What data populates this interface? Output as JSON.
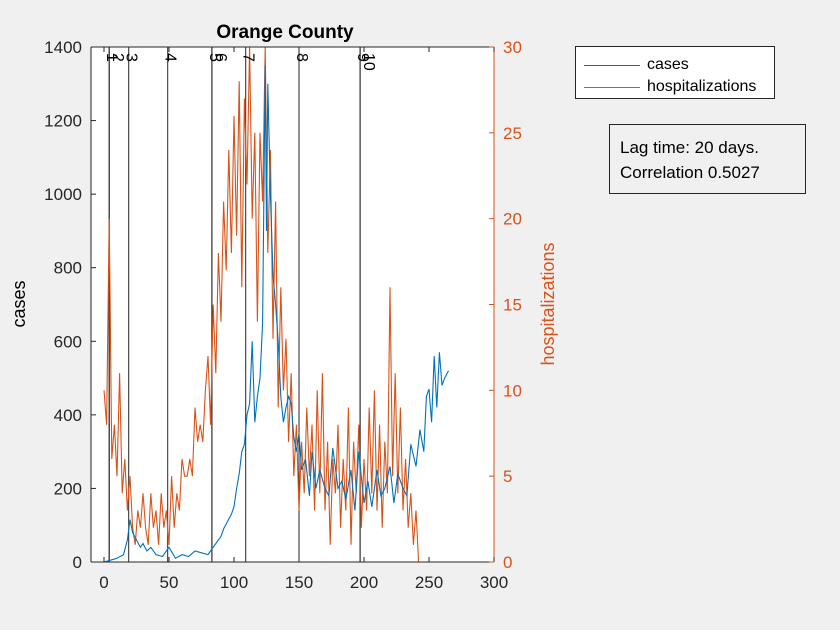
{
  "chart_data": {
    "type": "line",
    "title": "Orange County",
    "xlabel": "",
    "ylabel": "cases",
    "y2label": "hospitalizations",
    "xlim": [
      -10,
      300
    ],
    "ylim": [
      0,
      1400
    ],
    "y2lim": [
      0,
      30
    ],
    "xticks": [
      0,
      50,
      100,
      150,
      200,
      250,
      300
    ],
    "yticks": [
      0,
      200,
      400,
      600,
      800,
      1000,
      1200,
      1400
    ],
    "y2ticks": [
      0,
      5,
      10,
      15,
      20,
      25,
      30
    ],
    "grid": false,
    "legend_position": "outside-top-right",
    "colors": {
      "cases": "#0072bd",
      "hospitalizations": "#d95319",
      "axis": "#262626",
      "right_axis": "#d95319"
    },
    "vlines": [
      {
        "x": 4,
        "label": "1"
      },
      {
        "x": 4,
        "label": "2"
      },
      {
        "x": 19,
        "label": "3"
      },
      {
        "x": 49,
        "label": "4"
      },
      {
        "x": 83,
        "label": "5"
      },
      {
        "x": 83,
        "label": "6"
      },
      {
        "x": 109,
        "label": "7"
      },
      {
        "x": 150,
        "label": "8"
      },
      {
        "x": 197,
        "label": "9"
      },
      {
        "x": 197,
        "label": "10"
      }
    ],
    "series": [
      {
        "name": "cases",
        "axis": "left",
        "x": [
          0,
          5,
          10,
          15,
          18,
          20,
          22,
          25,
          28,
          30,
          33,
          36,
          40,
          45,
          50,
          55,
          60,
          65,
          70,
          75,
          80,
          83,
          86,
          88,
          90,
          92,
          95,
          98,
          100,
          102,
          104,
          106,
          108,
          110,
          112,
          114,
          116,
          118,
          120,
          122,
          124,
          125,
          126,
          128,
          130,
          132,
          134,
          136,
          138,
          140,
          142,
          144,
          146,
          148,
          150,
          152,
          155,
          158,
          160,
          163,
          166,
          170,
          173,
          176,
          180,
          183,
          186,
          190,
          193,
          196,
          200,
          203,
          206,
          210,
          213,
          216,
          220,
          223,
          226,
          230,
          233,
          236,
          240,
          243,
          246,
          248,
          250,
          252,
          254,
          256,
          258,
          260,
          262,
          265
        ],
        "y": [
          0,
          5,
          10,
          20,
          60,
          115,
          80,
          60,
          40,
          50,
          30,
          40,
          20,
          15,
          40,
          10,
          20,
          15,
          30,
          25,
          20,
          35,
          50,
          60,
          70,
          90,
          110,
          130,
          150,
          200,
          240,
          300,
          320,
          400,
          430,
          600,
          380,
          450,
          500,
          650,
          1350,
          900,
          1300,
          1000,
          780,
          700,
          600,
          450,
          380,
          420,
          450,
          430,
          340,
          300,
          350,
          250,
          280,
          180,
          300,
          200,
          250,
          200,
          180,
          310,
          200,
          220,
          170,
          250,
          140,
          300,
          160,
          220,
          150,
          250,
          180,
          200,
          260,
          160,
          240,
          200,
          180,
          320,
          260,
          360,
          300,
          450,
          470,
          380,
          560,
          420,
          570,
          480,
          500,
          520
        ]
      },
      {
        "name": "hospitalizations",
        "axis": "right",
        "x": [
          0,
          2,
          4,
          6,
          8,
          10,
          12,
          14,
          16,
          18,
          20,
          22,
          24,
          26,
          28,
          30,
          32,
          34,
          36,
          38,
          40,
          42,
          44,
          46,
          48,
          50,
          52,
          54,
          56,
          58,
          60,
          62,
          64,
          66,
          68,
          70,
          72,
          74,
          76,
          78,
          80,
          82,
          84,
          86,
          88,
          90,
          92,
          94,
          96,
          98,
          100,
          102,
          104,
          106,
          108,
          110,
          112,
          114,
          116,
          118,
          120,
          122,
          124,
          126,
          128,
          130,
          132,
          134,
          136,
          138,
          140,
          142,
          144,
          146,
          148,
          150,
          152,
          154,
          156,
          158,
          160,
          162,
          164,
          166,
          168,
          170,
          172,
          174,
          176,
          178,
          180,
          182,
          184,
          186,
          188,
          190,
          192,
          194,
          196,
          198,
          200,
          202,
          204,
          206,
          208,
          210,
          212,
          214,
          216,
          218,
          220,
          222,
          224,
          226,
          228,
          230,
          232,
          234,
          236,
          238,
          240,
          242,
          244
        ],
        "y": [
          10,
          8,
          20,
          6,
          8,
          5,
          11,
          4,
          6,
          3,
          5,
          2,
          1,
          3,
          2,
          4,
          2,
          1,
          4,
          2,
          3,
          1,
          4,
          2,
          3,
          1,
          5,
          2,
          4,
          3,
          6,
          5,
          5,
          6,
          5,
          9,
          7,
          8,
          7,
          10,
          12,
          8,
          15,
          11,
          18,
          14,
          21,
          17,
          24,
          18,
          26,
          19,
          28,
          16,
          27,
          22,
          30,
          20,
          25,
          14,
          25,
          21,
          30,
          18,
          24,
          13,
          21,
          9,
          16,
          10,
          13,
          7,
          11,
          5,
          8,
          3,
          7,
          4,
          9,
          5,
          8,
          3,
          10,
          4,
          11,
          3,
          7,
          1,
          6,
          4,
          8,
          2,
          6,
          3,
          9,
          1,
          7,
          4,
          8,
          2,
          6,
          3,
          9,
          4,
          10,
          3,
          8,
          2,
          7,
          4,
          16,
          5,
          11,
          4,
          9,
          3,
          6,
          2,
          4,
          1,
          3,
          0,
          0
        ]
      }
    ],
    "annotation_lines": [
      "Lag time: 20 days.",
      "Correlation 0.5027"
    ]
  }
}
